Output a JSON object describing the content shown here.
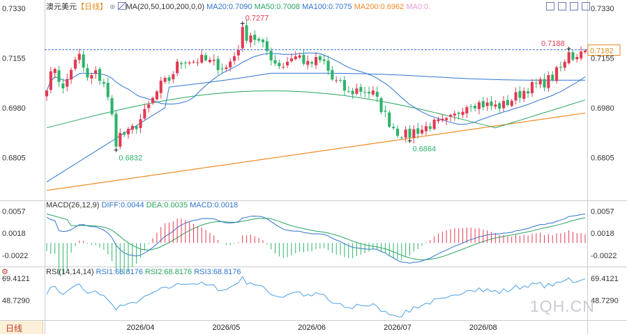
{
  "header": {
    "symbol": "澳元美元",
    "period_tag": "【日线】",
    "ma_label": "MA(20,50,100,200,0,0)",
    "ma20": "MA20:0.7090",
    "ma50": "MA50:0.7008",
    "ma100": "MA100:0.7075",
    "ma200": "MA200:0.6962",
    "ma0": "MA0:0."
  },
  "colors": {
    "up": "#e23a52",
    "down": "#2eb36a",
    "ma20": "#2f74d0",
    "ma50": "#27a35e",
    "ma100": "#2f74d0",
    "ma200": "#f08a24",
    "diff": "#2f74d0",
    "dea": "#27a35e",
    "rsi": "#4aa0e6",
    "grid": "#c9ccd4",
    "text": "#333333",
    "price_tag": "#e08a1e",
    "hline": "#2f74d0"
  },
  "icons": [
    "zoom-in-icon",
    "zoom-out-icon",
    "fullscreen-icon",
    "settings-icon"
  ],
  "macd_header": {
    "title": "MACD(26,12,9)",
    "diff": "DIFF:0.0044",
    "dea": "DEA:0.0035",
    "macd": "MACD:0.0018"
  },
  "rsi_header": {
    "title": "RSI(14,14,14)",
    "rsi1": "RSI1:68.8176",
    "rsi2": "RSI2:68.8176",
    "rsi3": "RSI3:68.8176"
  },
  "footer": {
    "period_button": "日线",
    "watermark": "1QH.CN"
  },
  "chart_data": {
    "type": "candlestick",
    "price_axis": {
      "ticks": [
        "0.7330",
        "0.7155",
        "0.6980",
        "0.6805"
      ],
      "range": [
        0.6655,
        0.733
      ]
    },
    "current_price": "0.7182",
    "annotations": [
      {
        "label": "0.7277",
        "index": 48,
        "value": 0.7277,
        "kind": "high"
      },
      {
        "label": "0.6832",
        "index": 17,
        "value": 0.6832,
        "kind": "low"
      },
      {
        "label": "0.6864",
        "index": 89,
        "value": 0.6864,
        "kind": "low"
      },
      {
        "label": "0.7188",
        "index": 128,
        "value": 0.7188,
        "kind": "high"
      }
    ],
    "x_labels": [
      {
        "label": "2026/04",
        "index": 23
      },
      {
        "label": "2026/05",
        "index": 44
      },
      {
        "label": "2026/06",
        "index": 65
      },
      {
        "label": "2026/07",
        "index": 86
      },
      {
        "label": "2026/08",
        "index": 107
      }
    ],
    "anchors": [
      [
        0,
        0.706
      ],
      [
        2,
        0.7125
      ],
      [
        4,
        0.704
      ],
      [
        6,
        0.712
      ],
      [
        8,
        0.716
      ],
      [
        10,
        0.708
      ],
      [
        12,
        0.71
      ],
      [
        14,
        0.707
      ],
      [
        16,
        0.695
      ],
      [
        18,
        0.6885
      ],
      [
        20,
        0.689
      ],
      [
        22,
        0.692
      ],
      [
        24,
        0.696
      ],
      [
        26,
        0.701
      ],
      [
        28,
        0.706
      ],
      [
        30,
        0.708
      ],
      [
        32,
        0.713
      ],
      [
        34,
        0.715
      ],
      [
        36,
        0.7145
      ],
      [
        38,
        0.715
      ],
      [
        40,
        0.714
      ],
      [
        42,
        0.713
      ],
      [
        44,
        0.712
      ],
      [
        46,
        0.7165
      ],
      [
        48,
        0.7225
      ],
      [
        50,
        0.724
      ],
      [
        52,
        0.721
      ],
      [
        54,
        0.718
      ],
      [
        56,
        0.714
      ],
      [
        58,
        0.713
      ],
      [
        60,
        0.716
      ],
      [
        62,
        0.716
      ],
      [
        64,
        0.713
      ],
      [
        66,
        0.7145
      ],
      [
        68,
        0.714
      ],
      [
        70,
        0.708
      ],
      [
        72,
        0.706
      ],
      [
        74,
        0.703
      ],
      [
        76,
        0.7045
      ],
      [
        78,
        0.704
      ],
      [
        80,
        0.703
      ],
      [
        82,
        0.698
      ],
      [
        84,
        0.693
      ],
      [
        86,
        0.6895
      ],
      [
        88,
        0.6885
      ],
      [
        90,
        0.69
      ],
      [
        92,
        0.6905
      ],
      [
        94,
        0.692
      ],
      [
        96,
        0.6925
      ],
      [
        98,
        0.693
      ],
      [
        100,
        0.695
      ],
      [
        102,
        0.6985
      ],
      [
        104,
        0.7
      ],
      [
        106,
        0.6995
      ],
      [
        108,
        0.699
      ],
      [
        110,
        0.6985
      ],
      [
        112,
        0.699
      ],
      [
        114,
        0.701
      ],
      [
        116,
        0.703
      ],
      [
        118,
        0.705
      ],
      [
        120,
        0.706
      ],
      [
        122,
        0.707
      ],
      [
        124,
        0.709
      ],
      [
        126,
        0.712
      ],
      [
        128,
        0.715
      ],
      [
        130,
        0.717
      ],
      [
        132,
        0.7182
      ]
    ],
    "macd_axis": {
      "ticks": [
        "0.0057",
        "0.0018",
        "-0.0022"
      ],
      "range": [
        -0.0042,
        0.006
      ]
    },
    "rsi_axis": {
      "ticks": [
        "69.4121",
        "48.7290"
      ],
      "range": [
        30,
        72
      ]
    },
    "last_values": {
      "ma20": 0.709,
      "ma50": 0.7008,
      "ma100": 0.7075,
      "ma200": 0.6962,
      "diff": 0.0044,
      "dea": 0.0035,
      "macd": 0.0018,
      "rsi": 68.8176
    }
  }
}
